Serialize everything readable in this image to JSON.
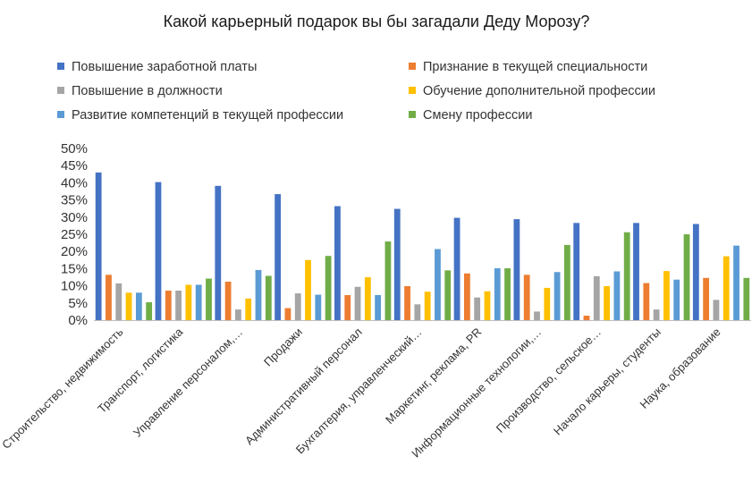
{
  "chart_data": {
    "type": "bar",
    "title": "Какой карьерный подарок вы бы загадали Деду Морозу?",
    "legend_position": "top",
    "grid": false,
    "ylim": [
      0,
      50
    ],
    "yticks": [
      "0%",
      "5%",
      "10%",
      "15%",
      "20%",
      "25%",
      "30%",
      "35%",
      "40%",
      "45%",
      "50%"
    ],
    "categories": [
      "Строительство, недвижимость",
      "Транспорт, логистика",
      "Управление персоналом,…",
      "Продажи",
      "Административный персонал",
      "Бухгалтерия, управленческий…",
      "Маркетинг, реклама, PR",
      "Информационные технологии,…",
      "Производство, сельское…",
      "Начало карьеры, студенты",
      "Наука, образование"
    ],
    "series": [
      {
        "name": "Повышение заработной платы",
        "color": "#4472c4",
        "values": [
          43.0,
          40.2,
          39.1,
          36.7,
          33.2,
          32.4,
          29.8,
          29.4,
          28.3,
          28.3,
          28.0
        ]
      },
      {
        "name": "Признание в текущей специальности",
        "color": "#ed7d31",
        "values": [
          13.2,
          8.6,
          11.2,
          3.5,
          7.3,
          9.9,
          13.6,
          13.2,
          1.3,
          10.8,
          12.3
        ]
      },
      {
        "name": "Повышение в должности",
        "color": "#a5a5a5",
        "values": [
          10.7,
          8.6,
          3.1,
          7.8,
          9.7,
          4.6,
          6.6,
          2.5,
          12.8,
          3.1,
          5.9
        ]
      },
      {
        "name": "Обучение дополнительной профессии",
        "color": "#ffc000",
        "values": [
          8.0,
          10.3,
          6.3,
          17.5,
          12.5,
          8.3,
          8.4,
          9.4,
          9.9,
          14.3,
          18.6
        ]
      },
      {
        "name": "Развитие компетенций в текущей профессии",
        "color": "#5b9bd5",
        "values": [
          8.0,
          10.3,
          14.6,
          7.4,
          7.3,
          20.7,
          15.1,
          14.0,
          14.2,
          11.8,
          21.7
        ]
      },
      {
        "name": "Смену профессии",
        "color": "#70ad47",
        "values": [
          5.2,
          12.1,
          12.9,
          18.7,
          22.9,
          14.5,
          15.1,
          21.9,
          25.6,
          25.0,
          12.3
        ]
      }
    ]
  }
}
